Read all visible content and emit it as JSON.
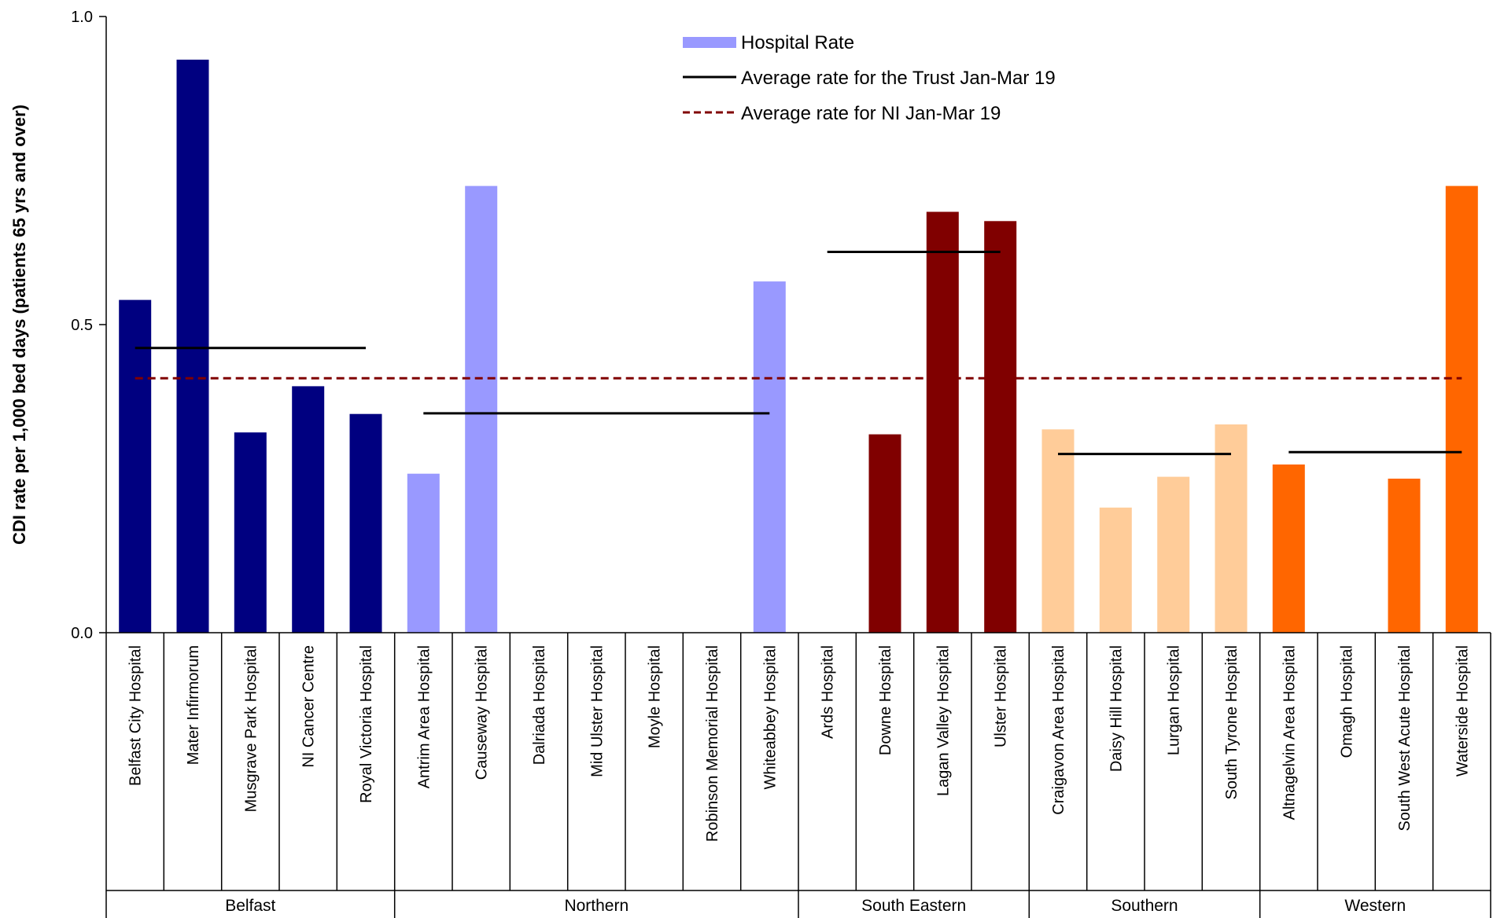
{
  "chart_data": {
    "type": "bar",
    "ylabel": "CDI rate per 1,000 bed days (patients 65 yrs and over)",
    "xlabel": "",
    "ylim": [
      0,
      1
    ],
    "yticks": [
      0,
      0.5,
      1
    ],
    "ytick_labels": [
      "0.0",
      "0.5",
      "1.0"
    ],
    "grid": false,
    "legend_position": "top-center",
    "legend": {
      "hospital_rate": "Hospital Rate",
      "trust_average": "Average rate for the Trust Jan-Mar 19",
      "ni_average": "Average rate for NI Jan-Mar 19"
    },
    "ni_average": 0.413,
    "groups": [
      {
        "name": "Belfast",
        "color": "#000080",
        "trust_average": 0.462,
        "hospitals": [
          {
            "name": "Belfast City Hospital",
            "value": 0.54
          },
          {
            "name": "Mater Infirmorum",
            "value": 0.93
          },
          {
            "name": "Musgrave Park Hospital",
            "value": 0.325
          },
          {
            "name": "NI Cancer Centre",
            "value": 0.4
          },
          {
            "name": "Royal Victoria Hospital",
            "value": 0.355
          }
        ]
      },
      {
        "name": "Northern",
        "color": "#9999FF",
        "trust_average": 0.356,
        "hospitals": [
          {
            "name": "Antrim Area Hospital",
            "value": 0.258
          },
          {
            "name": "Causeway Hospital",
            "value": 0.725
          },
          {
            "name": "Dalriada Hospital",
            "value": 0
          },
          {
            "name": "Mid Ulster Hospital",
            "value": 0
          },
          {
            "name": "Moyle Hospital",
            "value": 0
          },
          {
            "name": "Robinson Memorial Hospital",
            "value": 0
          },
          {
            "name": "Whiteabbey Hospital",
            "value": 0.57
          }
        ]
      },
      {
        "name": "South Eastern",
        "color": "#800000",
        "trust_average": 0.618,
        "hospitals": [
          {
            "name": "Ards Hospital",
            "value": 0
          },
          {
            "name": "Downe Hospital",
            "value": 0.322
          },
          {
            "name": "Lagan Valley Hospital",
            "value": 0.683
          },
          {
            "name": "Ulster Hospital",
            "value": 0.668
          }
        ]
      },
      {
        "name": "Southern",
        "color": "#FFCC99",
        "trust_average": 0.29,
        "hospitals": [
          {
            "name": "Craigavon Area Hospital",
            "value": 0.33
          },
          {
            "name": "Daisy Hill Hospital",
            "value": 0.203
          },
          {
            "name": "Lurgan Hospital",
            "value": 0.253
          },
          {
            "name": "South Tyrone Hospital",
            "value": 0.338
          }
        ]
      },
      {
        "name": "Western",
        "color": "#FF6600",
        "trust_average": 0.293,
        "hospitals": [
          {
            "name": "Altnagelvin Area Hospital",
            "value": 0.273
          },
          {
            "name": "Omagh Hospital",
            "value": 0
          },
          {
            "name": "South West Acute Hospital",
            "value": 0.25
          },
          {
            "name": "Waterside Hospital",
            "value": 0.725
          }
        ]
      }
    ],
    "colors": {
      "legend_swatch": "#9999FF",
      "trust_line": "#000000",
      "ni_line": "#800000"
    }
  }
}
